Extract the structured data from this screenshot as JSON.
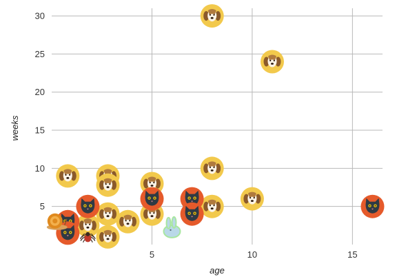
{
  "chart_data": {
    "type": "scatter",
    "title": "",
    "xlabel": "age",
    "ylabel": "weeks",
    "xlim": [
      0,
      16.5
    ],
    "ylim": [
      0,
      31
    ],
    "x_ticks": [
      5,
      10,
      15
    ],
    "y_ticks": [
      5,
      10,
      15,
      20,
      25,
      30
    ],
    "grid": true,
    "legend": "none",
    "point_colors": {
      "dog": "#f2c94c",
      "cat": "#e55a2b",
      "snail": "#e08a1e",
      "spider": "#c0392b",
      "rabbit": "#b9d8e8"
    },
    "points": [
      {
        "x": 8,
        "y": 30,
        "icon": "dog-icon"
      },
      {
        "x": 11,
        "y": 24,
        "icon": "dog-icon"
      },
      {
        "x": 8,
        "y": 10,
        "icon": "dog-icon"
      },
      {
        "x": 0.8,
        "y": 9,
        "icon": "dog-icon"
      },
      {
        "x": 2.8,
        "y": 9,
        "icon": "dog-icon"
      },
      {
        "x": 2.8,
        "y": 7.8,
        "icon": "dog-icon"
      },
      {
        "x": 5,
        "y": 8,
        "icon": "dog-icon"
      },
      {
        "x": 10,
        "y": 6,
        "icon": "dog-icon"
      },
      {
        "x": 8,
        "y": 5,
        "icon": "dog-icon"
      },
      {
        "x": 5,
        "y": 4,
        "icon": "dog-icon"
      },
      {
        "x": 2.8,
        "y": 4,
        "icon": "dog-icon"
      },
      {
        "x": 3.8,
        "y": 3,
        "icon": "dog-icon"
      },
      {
        "x": 1.8,
        "y": 2.5,
        "icon": "dog-icon"
      },
      {
        "x": 2.8,
        "y": 1,
        "icon": "dog-icon"
      },
      {
        "x": 16,
        "y": 5,
        "icon": "cat-icon"
      },
      {
        "x": 7,
        "y": 6,
        "icon": "cat-icon"
      },
      {
        "x": 7,
        "y": 4,
        "icon": "cat-icon"
      },
      {
        "x": 5,
        "y": 6,
        "icon": "cat-icon"
      },
      {
        "x": 1.8,
        "y": 5,
        "icon": "cat-icon"
      },
      {
        "x": 0.8,
        "y": 3,
        "icon": "cat-icon"
      },
      {
        "x": 0.8,
        "y": 1.5,
        "icon": "cat-icon"
      },
      {
        "x": 0.2,
        "y": 3,
        "icon": "snail-icon"
      },
      {
        "x": 1.8,
        "y": 1,
        "icon": "spider-icon"
      },
      {
        "x": 6,
        "y": 2,
        "icon": "rabbit-icon"
      }
    ]
  }
}
